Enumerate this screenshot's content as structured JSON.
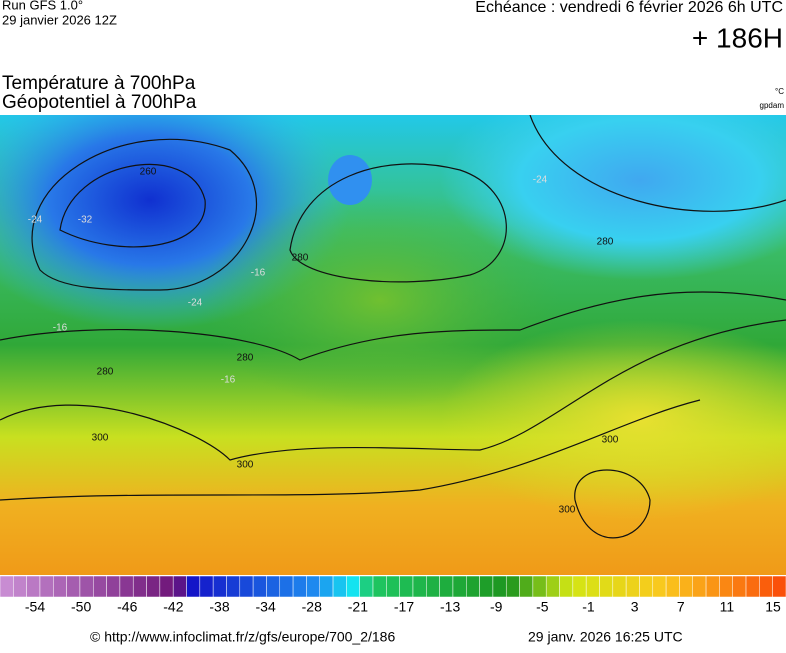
{
  "header": {
    "run": "Run GFS 1.0°",
    "run_date": "29 janvier 2026 12Z",
    "forecast": "Echéance : vendredi 6 février 2026 6h UTC",
    "lead": "+ 186H",
    "title_1": "Température à 700hPa",
    "title_2": "Géopotentiel à 700hPa",
    "unit_1": "°C",
    "unit_2": "gpdam"
  },
  "map": {
    "contour_labels": [
      "260",
      "280",
      "280",
      "280",
      "280",
      "300",
      "300",
      "300",
      "300",
      "-16",
      "-16",
      "-16",
      "-24",
      "-24",
      "-24",
      "-32"
    ]
  },
  "colorbar": {
    "labels": [
      "-54",
      "-50",
      "-46",
      "-42",
      "-38",
      "-34",
      "-28",
      "-21",
      "-17",
      "-13",
      "-9",
      "-5",
      "-1",
      "3",
      "7",
      "11",
      "15"
    ]
  },
  "footer": {
    "url": "© http://www.infoclimat.fr/z/gfs/europe/700_2/186",
    "timestamp": "29 janv. 2026 16:25 UTC"
  }
}
